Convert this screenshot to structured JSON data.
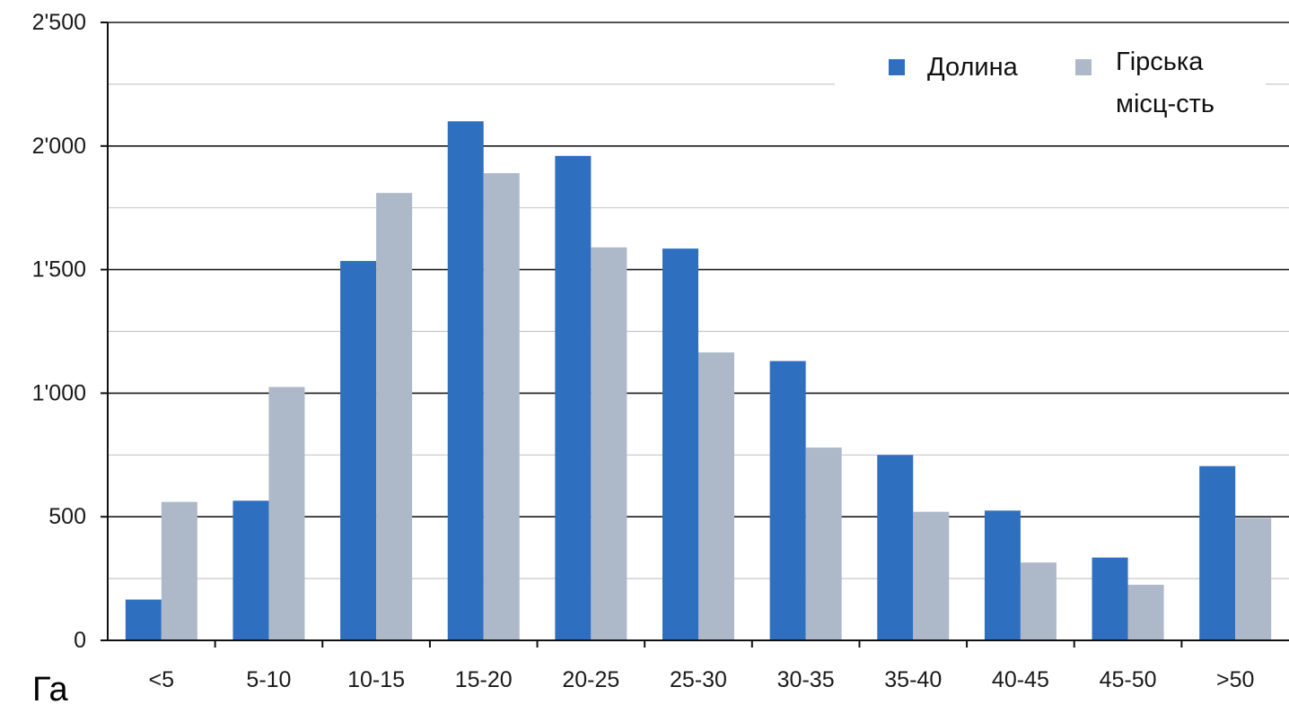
{
  "chart_data": {
    "type": "bar",
    "categories": [
      "<5",
      "5-10",
      "10-15",
      "15-20",
      "20-25",
      "25-30",
      "30-35",
      "35-40",
      "40-45",
      "45-50",
      ">50"
    ],
    "series": [
      {
        "name": "Долина",
        "color": "#2f6fbf",
        "values": [
          165,
          565,
          1535,
          2100,
          1960,
          1585,
          1130,
          750,
          525,
          335,
          705
        ]
      },
      {
        "name": "Гірська місц-сть",
        "name_lines": [
          "Гірська",
          "місц-сть"
        ],
        "color": "#adb8c9",
        "values": [
          560,
          1025,
          1810,
          1890,
          1590,
          1165,
          780,
          520,
          315,
          225,
          495
        ]
      }
    ],
    "y_ticks": [
      0,
      500,
      1000,
      1500,
      2000,
      2500
    ],
    "y_tick_labels": [
      "0",
      "500",
      "1'000",
      "1'500",
      "2'000",
      "2'500"
    ],
    "ylim": [
      0,
      2500
    ],
    "xlabel": "",
    "ylabel": "",
    "title": "",
    "grid": true,
    "legend_position": "top-right",
    "unit_label": "Га"
  }
}
